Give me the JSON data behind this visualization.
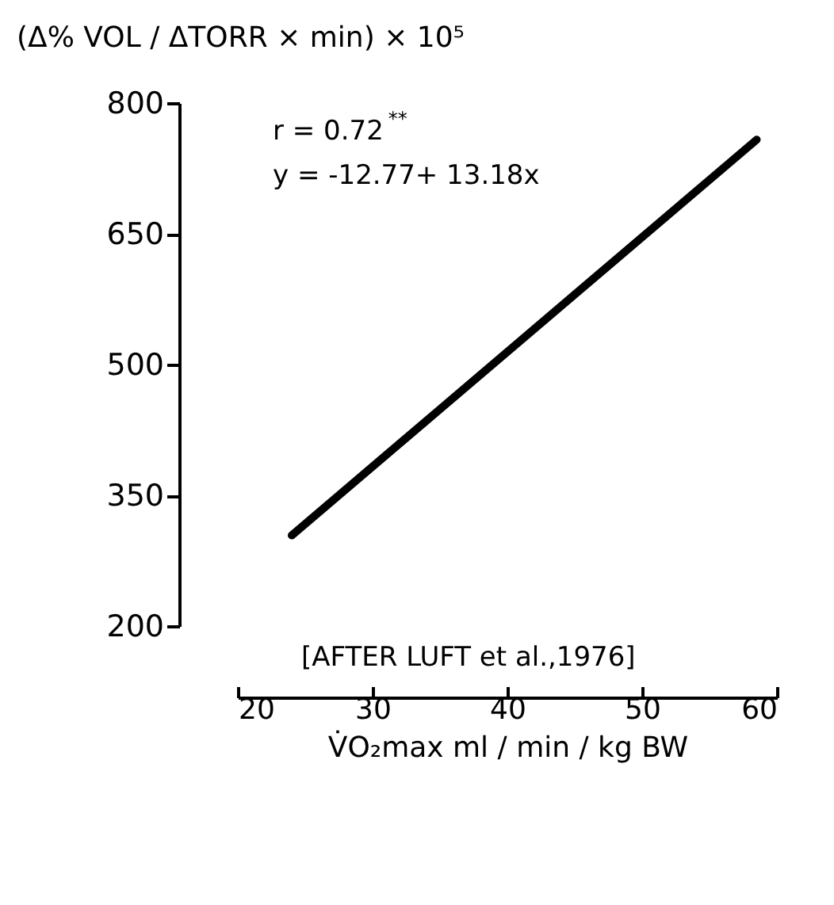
{
  "chart_data": {
    "type": "line",
    "ylabel": "(Δ% VOL / ΔTORR × min) × 10⁵",
    "xlabel": "V̇O₂max    ml / min / kg BW",
    "x": [
      24,
      58.5
    ],
    "series": [
      {
        "color": "#000000",
        "values": [
          304,
          758
        ]
      }
    ],
    "xlim": [
      20,
      60
    ],
    "xticks": [
      20,
      30,
      40,
      50,
      60
    ],
    "ylim": [
      200,
      800
    ],
    "yticks": [
      200,
      350,
      500,
      650,
      800
    ],
    "grid": false,
    "legend": false,
    "marker": "none",
    "line_style": "solid",
    "annotations": [
      "r = 0.72$^{**}$",
      "y = -12.77+ 13.18x",
      "[AFTER LUFT et al.,1976]"
    ]
  }
}
